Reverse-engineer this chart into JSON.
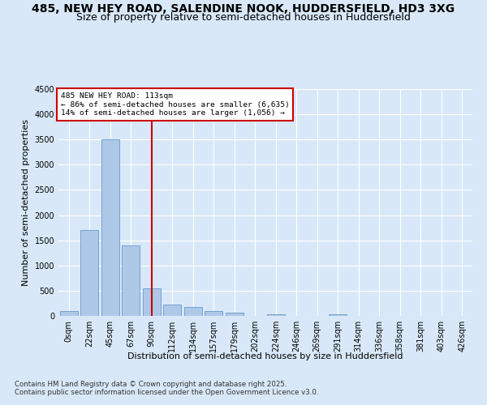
{
  "title_line1": "485, NEW HEY ROAD, SALENDINE NOOK, HUDDERSFIELD, HD3 3XG",
  "title_line2": "Size of property relative to semi-detached houses in Huddersfield",
  "xlabel": "Distribution of semi-detached houses by size in Huddersfield",
  "ylabel": "Number of semi-detached properties",
  "bin_labels": [
    "0sqm",
    "22sqm",
    "45sqm",
    "67sqm",
    "90sqm",
    "112sqm",
    "134sqm",
    "157sqm",
    "179sqm",
    "202sqm",
    "224sqm",
    "246sqm",
    "269sqm",
    "291sqm",
    "314sqm",
    "336sqm",
    "358sqm",
    "381sqm",
    "403sqm",
    "426sqm"
  ],
  "bar_heights": [
    100,
    1700,
    3500,
    1400,
    550,
    225,
    170,
    100,
    60,
    0,
    40,
    0,
    0,
    30,
    0,
    0,
    0,
    0,
    0,
    0
  ],
  "bar_color": "#aec8e8",
  "bar_edge_color": "#6699cc",
  "vline_color": "#cc0000",
  "annotation_line1": "485 NEW HEY ROAD: 113sqm",
  "annotation_line2": "← 86% of semi-detached houses are smaller (6,635)",
  "annotation_line3": "14% of semi-detached houses are larger (1,056) →",
  "annotation_box_facecolor": "#ffffff",
  "annotation_box_edgecolor": "#cc0000",
  "ylim": [
    0,
    4500
  ],
  "yticks": [
    0,
    500,
    1000,
    1500,
    2000,
    2500,
    3000,
    3500,
    4000,
    4500
  ],
  "fig_bg_color": "#d8e8f8",
  "plot_bg_color": "#d8e8f8",
  "title_fontsize": 10,
  "subtitle_fontsize": 9,
  "ylabel_fontsize": 8,
  "xlabel_fontsize": 8,
  "tick_fontsize": 7,
  "annotation_fontsize": 6.8,
  "footer_fontsize": 6.2,
  "footer_line1": "Contains HM Land Registry data © Crown copyright and database right 2025.",
  "footer_line2": "Contains public sector information licensed under the Open Government Licence v3.0."
}
